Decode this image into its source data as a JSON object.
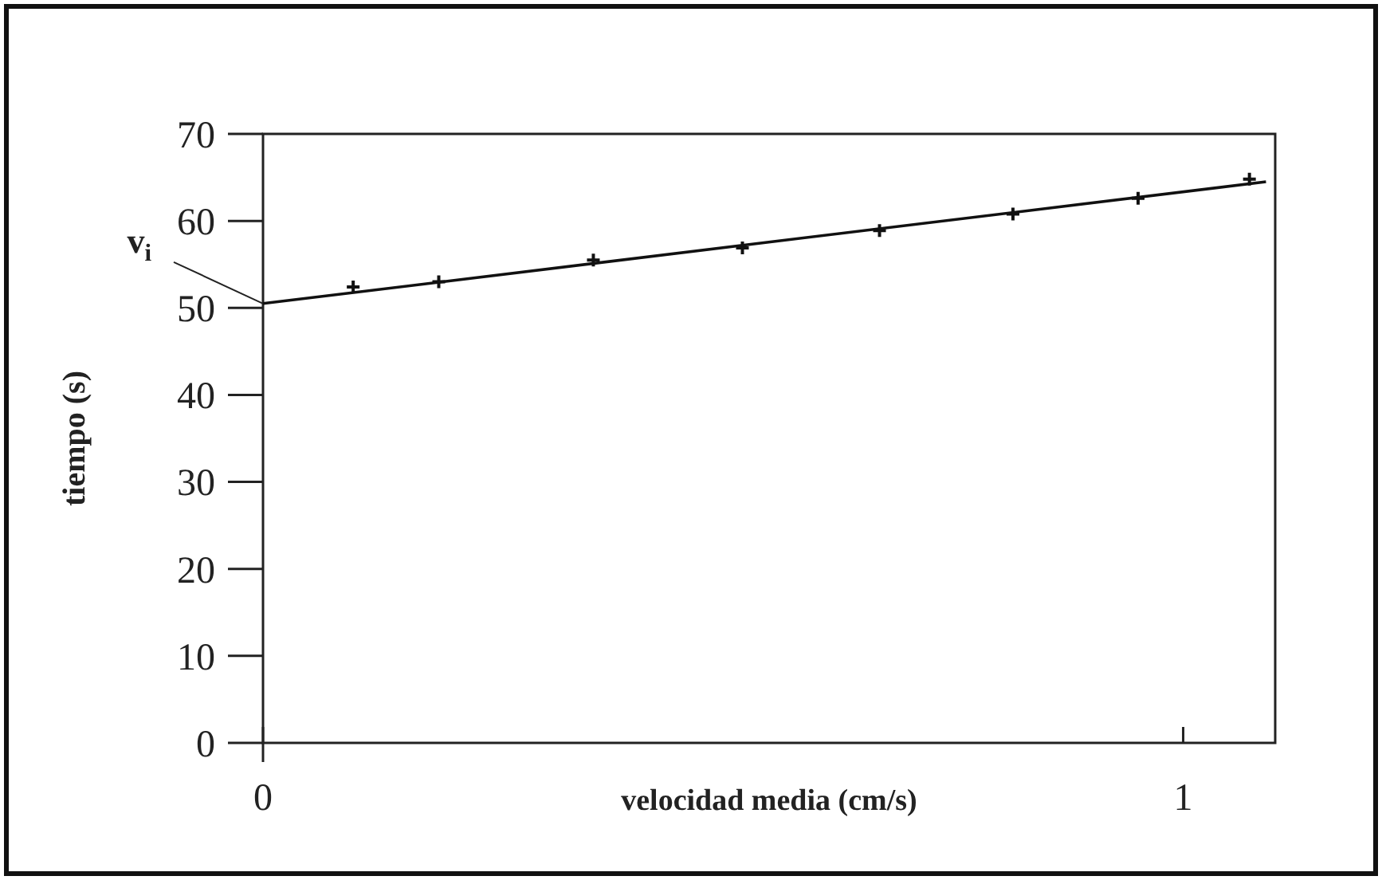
{
  "chart_data": {
    "type": "scatter",
    "xlabel": "velocidad media (cm/s)",
    "ylabel": "tiempo (s)",
    "xlim": [
      0,
      1.1
    ],
    "xticks": [
      0,
      1
    ],
    "ylim": [
      0,
      70
    ],
    "yticks": [
      0,
      10,
      20,
      30,
      40,
      50,
      60,
      70
    ],
    "grid": false,
    "series": [
      {
        "color": "#111111",
        "marker": "cross",
        "x": [
          0.098,
          0.191,
          0.359,
          0.521,
          0.67,
          0.815,
          0.951,
          1.072
        ],
        "values": [
          52.4,
          53.0,
          55.5,
          56.9,
          58.9,
          60.8,
          62.6,
          64.8
        ]
      },
      {
        "type": "line",
        "color": "#111111",
        "x": [
          0,
          1.09
        ],
        "values": [
          50.5,
          64.5
        ]
      }
    ],
    "annotations": [
      {
        "text": "v$_{i}$",
        "x": 0,
        "y": 50.5
      }
    ]
  }
}
